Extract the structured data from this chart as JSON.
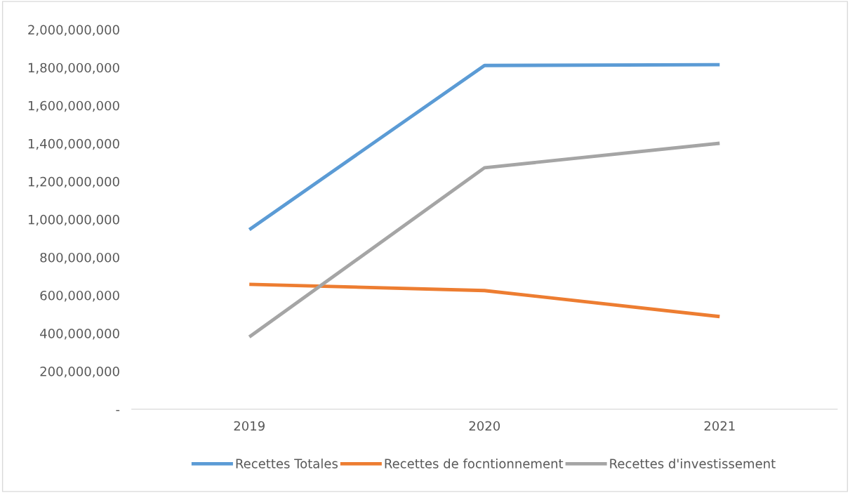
{
  "chart_data": {
    "type": "line",
    "categories": [
      "2019",
      "2020",
      "2021"
    ],
    "series": [
      {
        "name": "Recettes Totales",
        "color": "#5b9bd5",
        "values": [
          946000000,
          1811000000,
          1815000000
        ]
      },
      {
        "name": "Recettes de focntionnement",
        "color": "#ed7d31",
        "values": [
          658000000,
          625000000,
          488000000
        ]
      },
      {
        "name": "Recettes d'investissement",
        "color": "#a5a5a5",
        "values": [
          381000000,
          1272000000,
          1401000000
        ]
      }
    ],
    "ylim": [
      0,
      2000000000
    ],
    "yticks": [
      {
        "value": 0,
        "label": "-"
      },
      {
        "value": 200000000,
        "label": "200,000,000"
      },
      {
        "value": 400000000,
        "label": "400,000,000"
      },
      {
        "value": 600000000,
        "label": "600,000,000"
      },
      {
        "value": 800000000,
        "label": "800,000,000"
      },
      {
        "value": 1000000000,
        "label": "1,000,000,000"
      },
      {
        "value": 1200000000,
        "label": "1,200,000,000"
      },
      {
        "value": 1400000000,
        "label": "1,400,000,000"
      },
      {
        "value": 1600000000,
        "label": "1,600,000,000"
      },
      {
        "value": 1800000000,
        "label": "1,800,000,000"
      },
      {
        "value": 2000000000,
        "label": "2,000,000,000"
      }
    ],
    "grid": false,
    "legend": "bottom",
    "marker": "none",
    "line_style": "solid"
  }
}
